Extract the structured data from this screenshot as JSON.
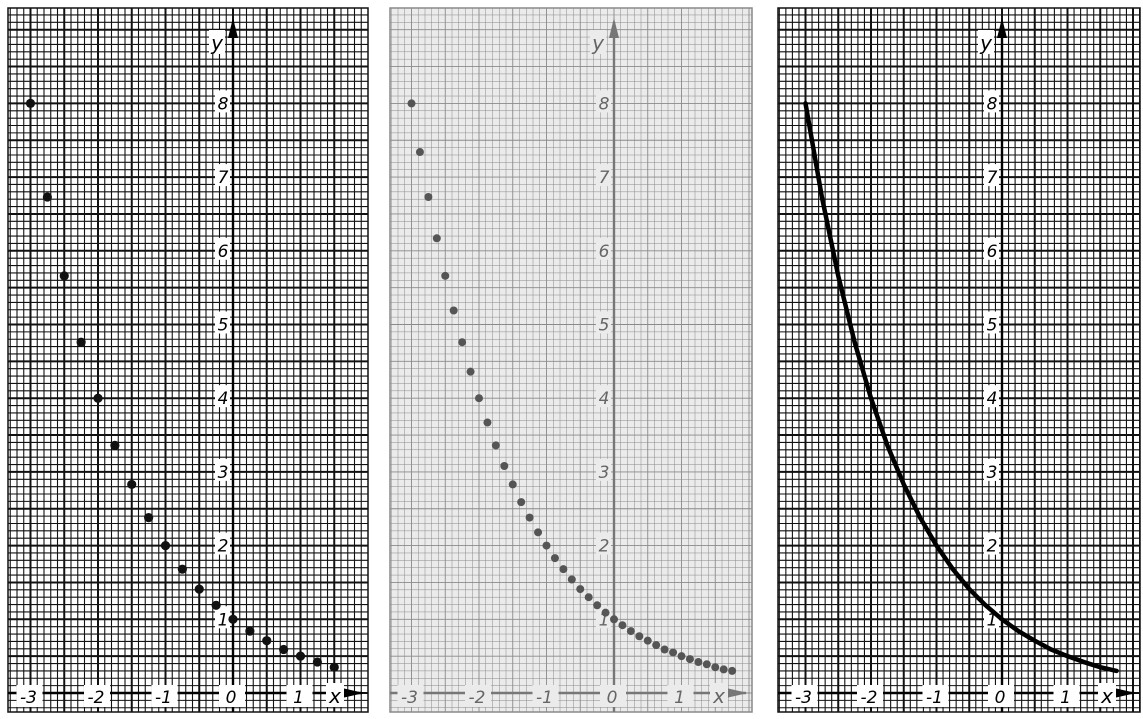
{
  "chart_data": [
    {
      "type": "scatter",
      "style": "dark",
      "title": "",
      "xlabel": "x",
      "ylabel": "y",
      "xlim": [
        -3.3,
        1.8
      ],
      "ylim": [
        -0.5,
        8.8
      ],
      "x_ticks": [
        "-3",
        "-2",
        "-1",
        "0",
        "1"
      ],
      "y_ticks": [
        "1",
        "2",
        "3",
        "4",
        "5",
        "6",
        "7",
        "8"
      ],
      "grid": true,
      "series": [
        {
          "mark": "point",
          "x": [
            -3,
            -2.75,
            -2.5,
            -2.25,
            -2,
            -1.75,
            -1.5,
            -1.25,
            -1,
            -0.75,
            -0.5,
            -0.25,
            0,
            0.25,
            0.5,
            0.75,
            1,
            1.25,
            1.5
          ],
          "y": [
            8,
            6.73,
            5.66,
            4.76,
            4,
            3.36,
            2.83,
            2.38,
            2,
            1.68,
            1.41,
            1.19,
            1,
            0.84,
            0.71,
            0.59,
            0.5,
            0.42,
            0.35
          ]
        }
      ]
    },
    {
      "type": "scatter",
      "style": "light",
      "title": "",
      "xlabel": "x",
      "ylabel": "y",
      "xlim": [
        -3.3,
        1.8
      ],
      "ylim": [
        -0.5,
        8.8
      ],
      "x_ticks": [
        "-3",
        "-2",
        "-1",
        "0",
        "1"
      ],
      "y_ticks": [
        "1",
        "2",
        "3",
        "4",
        "5",
        "6",
        "7",
        "8"
      ],
      "grid": true,
      "series": [
        {
          "mark": "point",
          "x": [
            -3,
            -2.875,
            -2.75,
            -2.625,
            -2.5,
            -2.375,
            -2.25,
            -2.125,
            -2,
            -1.875,
            -1.75,
            -1.625,
            -1.5,
            -1.375,
            -1.25,
            -1.125,
            -1,
            -0.875,
            -0.75,
            -0.625,
            -0.5,
            -0.375,
            -0.25,
            -0.125,
            0,
            0.125,
            0.25,
            0.375,
            0.5,
            0.625,
            0.75,
            0.875,
            1,
            1.125,
            1.25,
            1.375,
            1.5,
            1.625,
            1.75
          ],
          "y": [
            8,
            7.34,
            6.73,
            6.17,
            5.66,
            5.19,
            4.76,
            4.36,
            4,
            3.67,
            3.36,
            3.08,
            2.83,
            2.59,
            2.38,
            2.18,
            2,
            1.83,
            1.68,
            1.54,
            1.41,
            1.3,
            1.19,
            1.09,
            1,
            0.92,
            0.84,
            0.77,
            0.71,
            0.65,
            0.59,
            0.55,
            0.5,
            0.46,
            0.42,
            0.39,
            0.35,
            0.32,
            0.3
          ]
        }
      ]
    },
    {
      "type": "line",
      "style": "dark",
      "title": "",
      "xlabel": "x",
      "ylabel": "y",
      "xlim": [
        -3.3,
        1.8
      ],
      "ylim": [
        -0.5,
        8.8
      ],
      "x_ticks": [
        "-3",
        "-2",
        "-1",
        "0",
        "1"
      ],
      "y_ticks": [
        "1",
        "2",
        "3",
        "4",
        "5",
        "6",
        "7",
        "8"
      ],
      "grid": true,
      "series": [
        {
          "mark": "line",
          "x": [
            -3,
            -2.75,
            -2.5,
            -2.25,
            -2,
            -1.75,
            -1.5,
            -1.25,
            -1,
            -0.75,
            -0.5,
            -0.25,
            0,
            0.25,
            0.5,
            0.75,
            1,
            1.25,
            1.5,
            1.75
          ],
          "y": [
            8,
            6.73,
            5.66,
            4.76,
            4,
            3.36,
            2.83,
            2.38,
            2,
            1.68,
            1.41,
            1.19,
            1,
            0.84,
            0.71,
            0.59,
            0.5,
            0.42,
            0.35,
            0.3
          ]
        }
      ]
    }
  ],
  "colors": {
    "dark_bg": "#ffffff",
    "dark_grid": "#111111",
    "light_bg": "#ebebeb",
    "light_grid": "#8a8a8a",
    "dark_points": "#111111",
    "light_points": "#555555",
    "curve": "#000000"
  }
}
